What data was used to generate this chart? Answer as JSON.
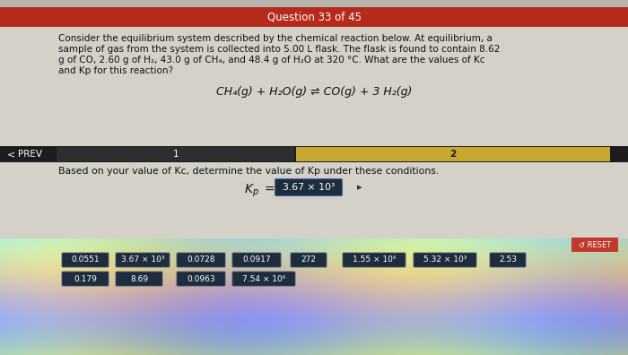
{
  "title": "Question 33 of 45",
  "title_bg": "#b52a1a",
  "title_color": "#ffffff",
  "body_bg": "#d4d1c9",
  "question_text_line1": "Consider the equilibrium system described by the chemical reaction below. At equilibrium, a",
  "question_text_line2": "sample of gas from the system is collected into 5.00 L flask. The flask is found to contain 8.62",
  "question_text_line3": "g of CO, 2.60 g of H₂, 43.0 g of CH₄, and 48.4 g of H₂O at 320 °C. What are the values of Kc",
  "question_text_line4": "and Kp for this reaction?",
  "reaction": "CH₄(g) + H₂O(g) ⇌ CO(g) + 3 H₂(g)",
  "nav_bar_bg": "#1c1c1c",
  "nav_prev": "PREV",
  "nav_1": "1",
  "nav_2": "2",
  "nav_sec1_bg": "#2e2e2e",
  "nav_highlight": "#c8a830",
  "subquestion": "Based on your value of Kc, determine the value of Kp under these conditions.",
  "kp_value": "3.67 × 10³",
  "kp_box_bg": "#1e2d3d",
  "kp_box_color": "#ffffff",
  "answer_box_bg": "#1e2d3d",
  "answer_box_color": "#ffffff",
  "reset_bg": "#c0392b",
  "reset_color": "#ffffff",
  "reset_text": "↺ RESET",
  "row1_answers": [
    "0.0551",
    "3.67 × 10³",
    "0.0728",
    "0.0917",
    "272",
    "1.55 × 10⁶",
    "5.32 × 10³",
    "2.53"
  ],
  "row2_answers": [
    "0.179",
    "8.69",
    "0.0963",
    "7.54 × 10⁶"
  ],
  "lower_bg": "#c8c4bc"
}
